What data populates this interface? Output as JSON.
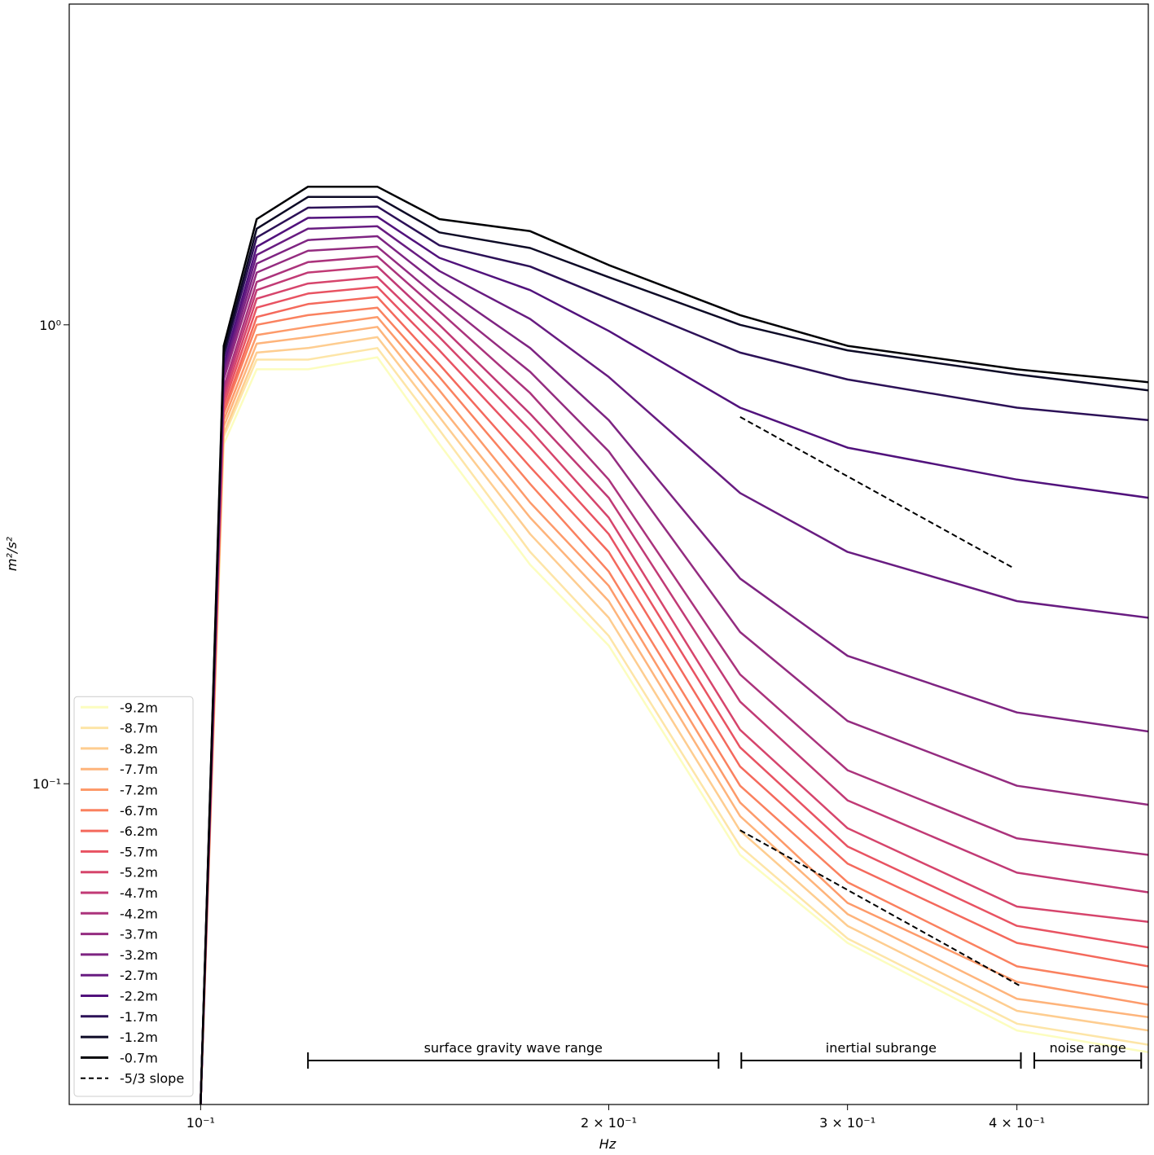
{
  "chart_data": {
    "type": "line",
    "xlabel": "Hz",
    "ylabel": "m²/s²",
    "xscale": "log",
    "yscale": "log",
    "xlim": [
      0.08,
      0.5
    ],
    "ylim": [
      0.02,
      5
    ],
    "xticks": [
      {
        "value": 0.1,
        "label": "10⁻¹"
      },
      {
        "value": 0.2,
        "label": "2 × 10⁻¹"
      },
      {
        "value": 0.3,
        "label": "3 × 10⁻¹"
      },
      {
        "value": 0.4,
        "label": "4 × 10⁻¹"
      }
    ],
    "yticks": [
      {
        "value": 0.1,
        "label": "10⁻¹"
      },
      {
        "value": 1,
        "label": "10⁰"
      }
    ],
    "legend": "lower left",
    "x": [
      0.1,
      0.104,
      0.11,
      0.12,
      0.135,
      0.15,
      0.175,
      0.2,
      0.25,
      0.3,
      0.4,
      0.5
    ],
    "series": [
      {
        "name": "-9.2m",
        "color": "#fcfdbf",
        "values": [
          0.02,
          0.55,
          0.8,
          0.8,
          0.85,
          0.55,
          0.3,
          0.2,
          0.07,
          0.045,
          0.029,
          0.026
        ]
      },
      {
        "name": "-8.7m",
        "color": "#fde5a7",
        "values": [
          0.02,
          0.57,
          0.84,
          0.84,
          0.89,
          0.59,
          0.32,
          0.21,
          0.073,
          0.046,
          0.03,
          0.027
        ]
      },
      {
        "name": "-8.2m",
        "color": "#fecd90",
        "values": [
          0.02,
          0.58,
          0.87,
          0.89,
          0.94,
          0.63,
          0.35,
          0.23,
          0.079,
          0.049,
          0.032,
          0.029
        ]
      },
      {
        "name": "-7.7m",
        "color": "#feb47b",
        "values": [
          0.02,
          0.6,
          0.91,
          0.94,
          0.99,
          0.67,
          0.38,
          0.25,
          0.085,
          0.052,
          0.034,
          0.031
        ]
      },
      {
        "name": "-7.2m",
        "color": "#fd9a6a",
        "values": [
          0.02,
          0.62,
          0.95,
          0.99,
          1.04,
          0.72,
          0.41,
          0.27,
          0.091,
          0.055,
          0.037,
          0.033
        ]
      },
      {
        "name": "-6.7m",
        "color": "#fa815f",
        "values": [
          0.02,
          0.64,
          1.0,
          1.05,
          1.09,
          0.77,
          0.45,
          0.29,
          0.099,
          0.061,
          0.04,
          0.036
        ]
      },
      {
        "name": "-6.2m",
        "color": "#f4695c",
        "values": [
          0.02,
          0.65,
          1.04,
          1.11,
          1.15,
          0.82,
          0.49,
          0.32,
          0.109,
          0.067,
          0.045,
          0.04
        ]
      },
      {
        "name": "-5.7m",
        "color": "#e85362",
        "values": [
          0.02,
          0.67,
          1.09,
          1.17,
          1.21,
          0.88,
          0.54,
          0.35,
          0.12,
          0.073,
          0.049,
          0.044
        ]
      },
      {
        "name": "-5.2m",
        "color": "#d6456c",
        "values": [
          0.02,
          0.69,
          1.14,
          1.23,
          1.27,
          0.94,
          0.59,
          0.38,
          0.131,
          0.08,
          0.054,
          0.05
        ]
      },
      {
        "name": "-4.7m",
        "color": "#c13a75",
        "values": [
          0.02,
          0.71,
          1.19,
          1.3,
          1.34,
          1.0,
          0.64,
          0.42,
          0.151,
          0.092,
          0.064,
          0.058
        ]
      },
      {
        "name": "-4.2m",
        "color": "#ab337c",
        "values": [
          0.02,
          0.73,
          1.24,
          1.37,
          1.41,
          1.07,
          0.71,
          0.46,
          0.173,
          0.107,
          0.076,
          0.07
        ]
      },
      {
        "name": "-3.7m",
        "color": "#942c80",
        "values": [
          0.02,
          0.76,
          1.3,
          1.45,
          1.48,
          1.14,
          0.79,
          0.53,
          0.214,
          0.137,
          0.099,
          0.09
        ]
      },
      {
        "name": "-3.2m",
        "color": "#7e2482",
        "values": [
          0.02,
          0.78,
          1.36,
          1.53,
          1.56,
          1.22,
          0.89,
          0.62,
          0.28,
          0.19,
          0.143,
          0.13
        ]
      },
      {
        "name": "-2.7m",
        "color": "#681c81",
        "values": [
          0.02,
          0.8,
          1.42,
          1.62,
          1.64,
          1.31,
          1.03,
          0.77,
          0.43,
          0.32,
          0.25,
          0.23
        ]
      },
      {
        "name": "-2.2m",
        "color": "#51127c",
        "values": [
          0.02,
          0.82,
          1.48,
          1.71,
          1.72,
          1.4,
          1.19,
          0.97,
          0.66,
          0.54,
          0.46,
          0.42
        ]
      },
      {
        "name": "-1.7m",
        "color": "#2c1157",
        "values": [
          0.02,
          0.85,
          1.55,
          1.8,
          1.81,
          1.49,
          1.34,
          1.14,
          0.87,
          0.76,
          0.66,
          0.62
        ]
      },
      {
        "name": "-1.2m",
        "color": "#0d0a26",
        "values": [
          0.02,
          0.87,
          1.62,
          1.9,
          1.9,
          1.59,
          1.47,
          1.27,
          1.0,
          0.88,
          0.78,
          0.72
        ]
      },
      {
        "name": "-0.7m",
        "color": "#000004",
        "values": [
          0.02,
          0.9,
          1.7,
          2.0,
          2.0,
          1.7,
          1.6,
          1.35,
          1.05,
          0.9,
          0.8,
          0.75
        ]
      }
    ],
    "slope_lines": {
      "name": "-5/3 slope",
      "color": "#000000",
      "lines": [
        {
          "x": [
            0.25,
            0.397
          ],
          "values": [
            0.63,
            0.296
          ]
        },
        {
          "x": [
            0.25,
            0.4026
          ],
          "values": [
            0.0792,
            0.0362
          ]
        }
      ]
    },
    "annotations": [
      {
        "text": "surface gravity wave range",
        "range": [
          0.12,
          0.241
        ]
      },
      {
        "text": "inertial subrange",
        "range": [
          0.2505,
          0.4027
        ]
      },
      {
        "text": "noise range",
        "range": [
          0.412,
          0.494
        ]
      }
    ]
  }
}
